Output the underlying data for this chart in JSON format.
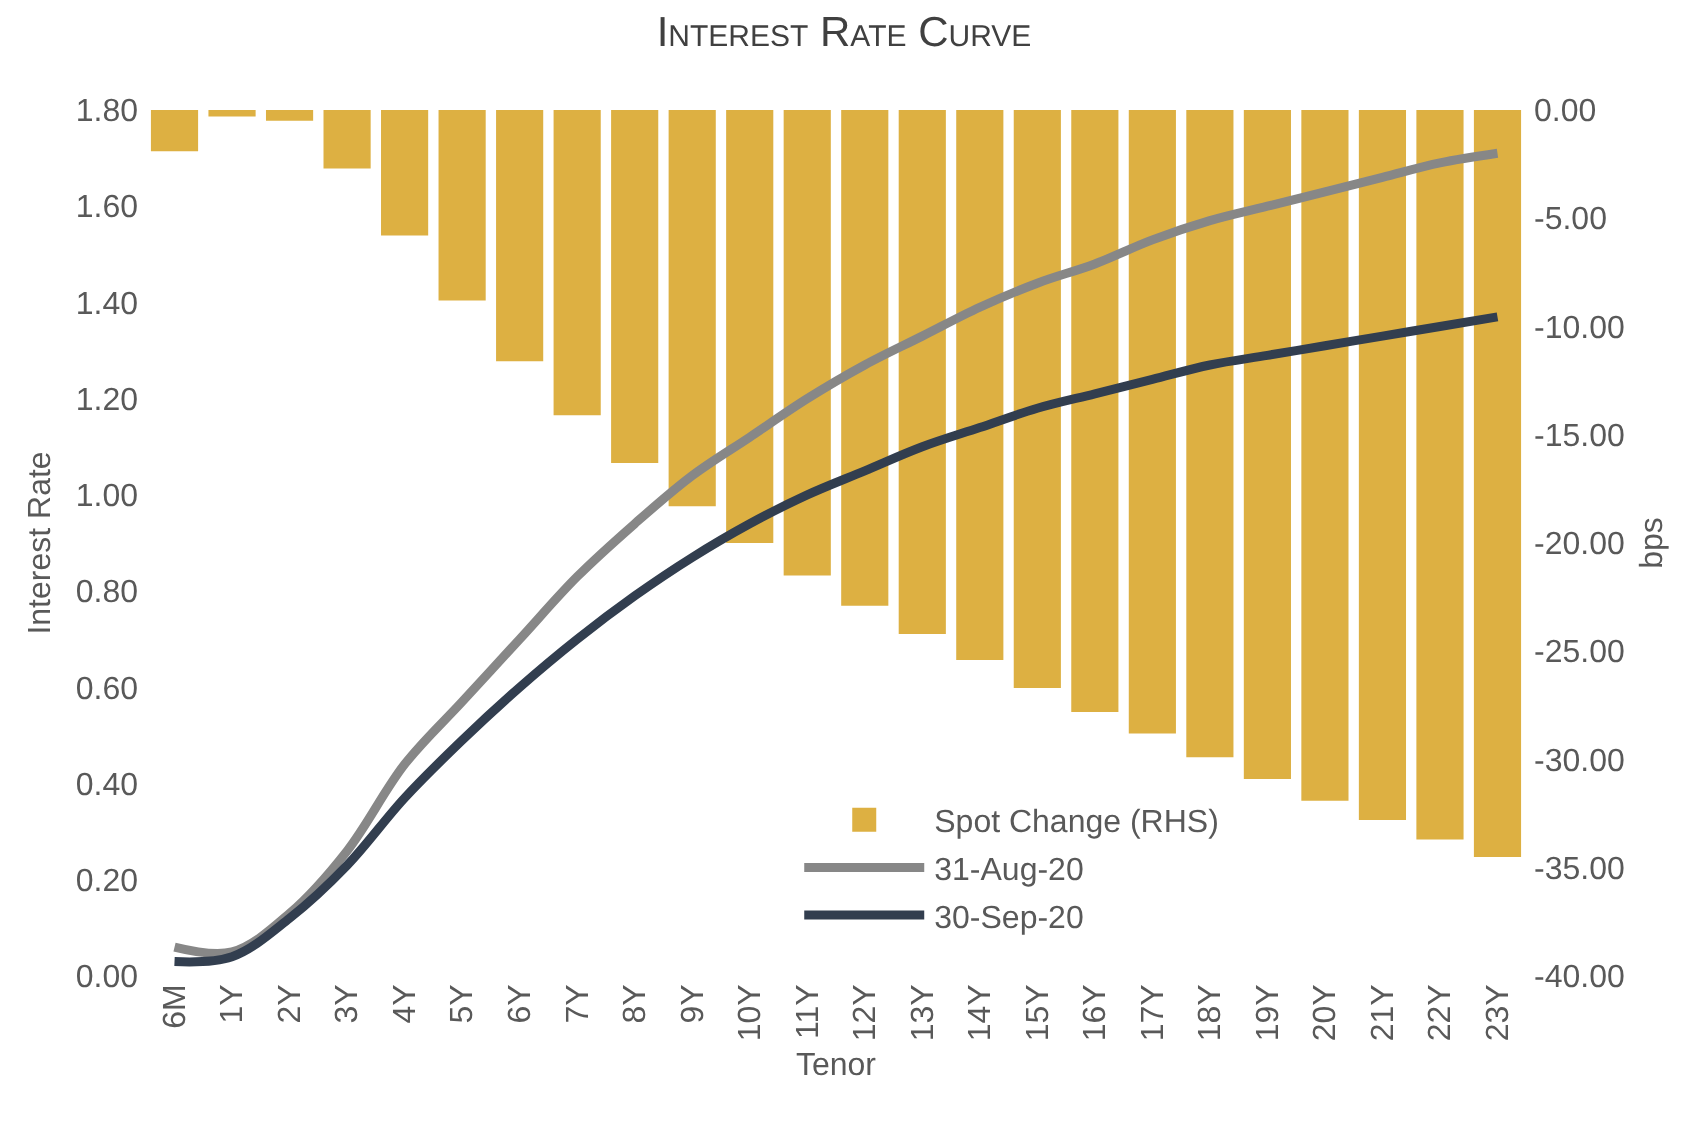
{
  "chart_data": {
    "type": "line",
    "title": "Interest Rate Curve",
    "xlabel": "Tenor",
    "ylabel": "Interest Rate",
    "y2label": "bps",
    "categories": [
      "6M",
      "1Y",
      "2Y",
      "3Y",
      "4Y",
      "5Y",
      "6Y",
      "7Y",
      "8Y",
      "9Y",
      "10Y",
      "11Y",
      "12Y",
      "13Y",
      "14Y",
      "15Y",
      "16Y",
      "17Y",
      "18Y",
      "19Y",
      "20Y",
      "21Y",
      "22Y",
      "23Y"
    ],
    "series": [
      {
        "name": "Spot Change (RHS)",
        "type": "bar",
        "axis": "y2",
        "color": "#ddb042",
        "values": [
          -1.9,
          -0.3,
          -0.5,
          -2.7,
          -5.8,
          -8.8,
          -11.6,
          -14.1,
          -16.3,
          -18.3,
          -20.0,
          -21.5,
          -22.9,
          -24.2,
          -25.4,
          -26.7,
          -27.8,
          -28.8,
          -29.9,
          -30.9,
          -31.9,
          -32.8,
          -33.7,
          -34.5
        ]
      },
      {
        "name": "31-Aug-20",
        "color": "#878787",
        "values": [
          0.06,
          0.05,
          0.13,
          0.26,
          0.44,
          0.57,
          0.7,
          0.83,
          0.94,
          1.04,
          1.12,
          1.2,
          1.27,
          1.33,
          1.39,
          1.44,
          1.48,
          1.53,
          1.57,
          1.6,
          1.63,
          1.66,
          1.69,
          1.71
        ]
      },
      {
        "name": "30-Sep-20",
        "color": "#323e4f",
        "values": [
          0.03,
          0.04,
          0.12,
          0.23,
          0.37,
          0.49,
          0.6,
          0.7,
          0.79,
          0.87,
          0.94,
          1.0,
          1.05,
          1.1,
          1.14,
          1.18,
          1.21,
          1.24,
          1.27,
          1.29,
          1.31,
          1.33,
          1.35,
          1.37
        ]
      }
    ],
    "ylim": [
      0,
      1.8
    ],
    "yticks": [
      {
        "value": 0,
        "label": "0.00"
      },
      {
        "value": 0.2,
        "label": "0.20"
      },
      {
        "value": 0.4,
        "label": "0.40"
      },
      {
        "value": 0.6,
        "label": "0.60"
      },
      {
        "value": 0.8,
        "label": "0.80"
      },
      {
        "value": 1.0,
        "label": "1.00"
      },
      {
        "value": 1.2,
        "label": "1.20"
      },
      {
        "value": 1.4,
        "label": "1.40"
      },
      {
        "value": 1.6,
        "label": "1.60"
      },
      {
        "value": 1.8,
        "label": "1.80"
      }
    ],
    "y2lim": [
      -40,
      0
    ],
    "y2ticks": [
      {
        "value": -40,
        "label": "-40.00"
      },
      {
        "value": -35,
        "label": "-35.00"
      },
      {
        "value": -30,
        "label": "-30.00"
      },
      {
        "value": -25,
        "label": "-25.00"
      },
      {
        "value": -20,
        "label": "-20.00"
      },
      {
        "value": -15,
        "label": "-15.00"
      },
      {
        "value": -10,
        "label": "-10.00"
      },
      {
        "value": -5,
        "label": "-5.00"
      },
      {
        "value": 0,
        "label": "0.00"
      }
    ],
    "legend": "bottom",
    "marker": "none",
    "line_style": "solid"
  }
}
